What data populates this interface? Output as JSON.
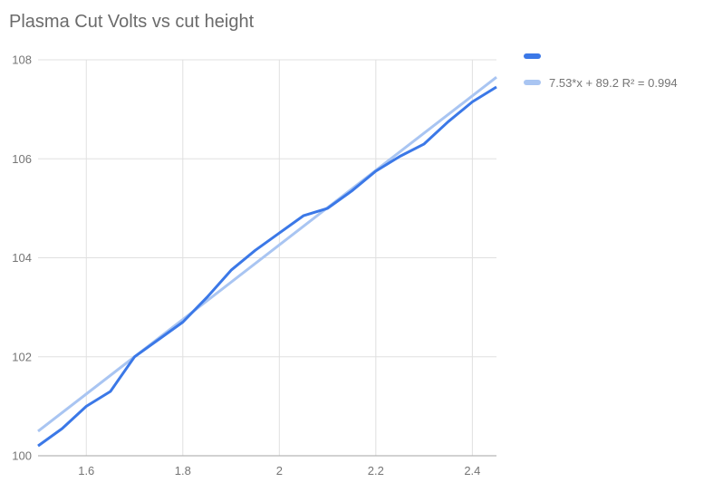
{
  "title": "Plasma Cut Volts vs cut height",
  "colors": {
    "series": "#3b78e7",
    "trendline": "#a9c5f2",
    "gridline": "#e0e0e0",
    "axis_line": "#a6a6a6",
    "tick_label": "#757575",
    "title_text": "#6b6b6b",
    "background": "#ffffff"
  },
  "legend": {
    "position": "right",
    "items": [
      {
        "label": "",
        "color": "#3b78e7",
        "name": "series-swatch"
      },
      {
        "label": "7.53*x + 89.2 R² = 0.994",
        "color": "#a9c5f2",
        "name": "trendline-swatch"
      }
    ]
  },
  "chart_data": {
    "type": "line",
    "title": "Plasma Cut Volts vs cut height",
    "xlabel": "",
    "ylabel": "",
    "xlim": [
      1.5,
      2.45
    ],
    "ylim": [
      100,
      108
    ],
    "grid": true,
    "legend_position": "right",
    "x_ticks": [
      1.6,
      1.8,
      2,
      2.2,
      2.4
    ],
    "x_tick_labels": [
      "1.6",
      "1.8",
      "2",
      "2.2",
      "2.4"
    ],
    "y_ticks": [
      100,
      102,
      104,
      106,
      108
    ],
    "y_tick_labels": [
      "100",
      "102",
      "104",
      "106",
      "108"
    ],
    "series": [
      {
        "name": "",
        "kind": "data",
        "color": "#3b78e7",
        "x": [
          1.5,
          1.55,
          1.6,
          1.65,
          1.7,
          1.75,
          1.8,
          1.85,
          1.9,
          1.95,
          2.0,
          2.05,
          2.1,
          2.15,
          2.2,
          2.25,
          2.3,
          2.35,
          2.4,
          2.45
        ],
        "y": [
          100.2,
          100.55,
          101.0,
          101.3,
          102.0,
          102.35,
          102.7,
          103.2,
          103.75,
          104.15,
          104.5,
          104.85,
          105.0,
          105.35,
          105.75,
          106.05,
          106.3,
          106.75,
          107.15,
          107.45
        ]
      },
      {
        "name": "7.53*x + 89.2 R² = 0.994",
        "kind": "trendline",
        "color": "#a9c5f2",
        "slope": 7.53,
        "intercept": 89.2,
        "r2": 0.994
      }
    ]
  }
}
